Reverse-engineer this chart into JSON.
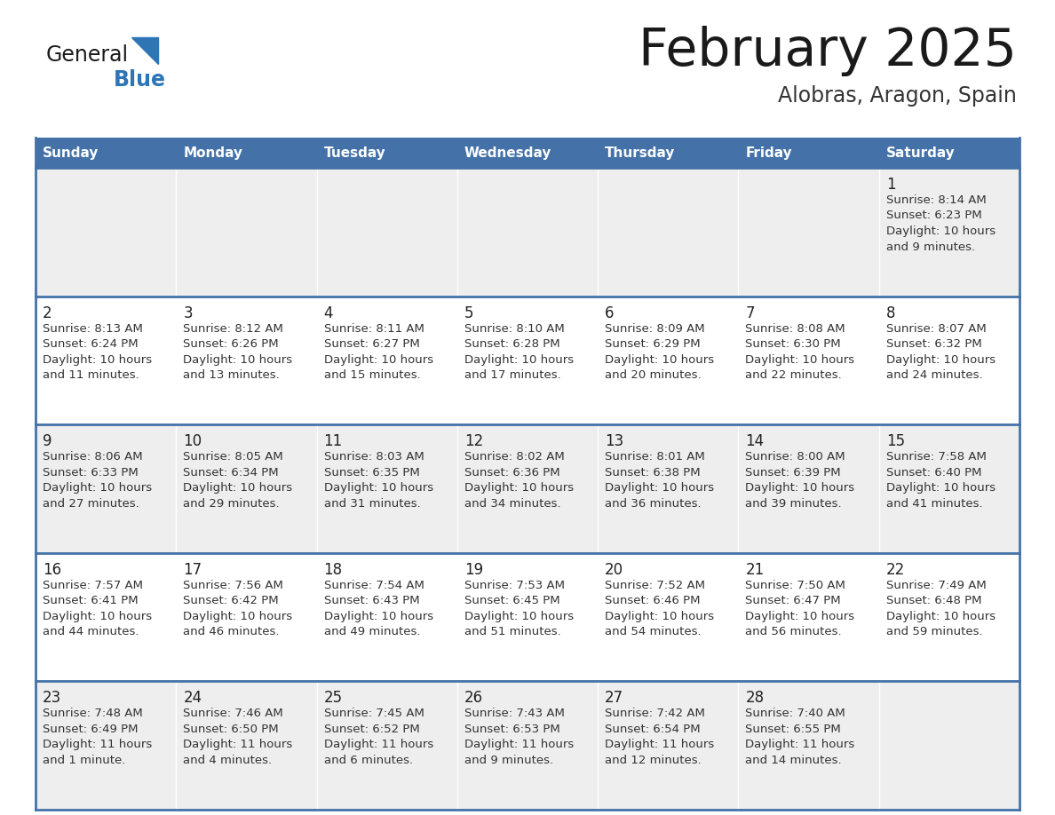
{
  "title": "February 2025",
  "subtitle": "Alobras, Aragon, Spain",
  "header_bg": "#4472a8",
  "header_text": "#ffffff",
  "odd_row_bg": "#eeeeee",
  "even_row_bg": "#ffffff",
  "border_color": "#4472a8",
  "day_headers": [
    "Sunday",
    "Monday",
    "Tuesday",
    "Wednesday",
    "Thursday",
    "Friday",
    "Saturday"
  ],
  "title_color": "#1a1a1a",
  "subtitle_color": "#333333",
  "cell_text_color": "#333333",
  "day_num_color": "#222222",
  "logo_general_color": "#1a1a1a",
  "logo_blue_color": "#2e75b6",
  "logo_triangle_color": "#2e75b6",
  "calendar_data": [
    [
      null,
      null,
      null,
      null,
      null,
      null,
      {
        "day": "1",
        "sunrise": "8:14 AM",
        "sunset": "6:23 PM",
        "daylight": "10 hours and 9 minutes."
      }
    ],
    [
      {
        "day": "2",
        "sunrise": "8:13 AM",
        "sunset": "6:24 PM",
        "daylight": "10 hours and 11 minutes."
      },
      {
        "day": "3",
        "sunrise": "8:12 AM",
        "sunset": "6:26 PM",
        "daylight": "10 hours and 13 minutes."
      },
      {
        "day": "4",
        "sunrise": "8:11 AM",
        "sunset": "6:27 PM",
        "daylight": "10 hours and 15 minutes."
      },
      {
        "day": "5",
        "sunrise": "8:10 AM",
        "sunset": "6:28 PM",
        "daylight": "10 hours and 17 minutes."
      },
      {
        "day": "6",
        "sunrise": "8:09 AM",
        "sunset": "6:29 PM",
        "daylight": "10 hours and 20 minutes."
      },
      {
        "day": "7",
        "sunrise": "8:08 AM",
        "sunset": "6:30 PM",
        "daylight": "10 hours and 22 minutes."
      },
      {
        "day": "8",
        "sunrise": "8:07 AM",
        "sunset": "6:32 PM",
        "daylight": "10 hours and 24 minutes."
      }
    ],
    [
      {
        "day": "9",
        "sunrise": "8:06 AM",
        "sunset": "6:33 PM",
        "daylight": "10 hours and 27 minutes."
      },
      {
        "day": "10",
        "sunrise": "8:05 AM",
        "sunset": "6:34 PM",
        "daylight": "10 hours and 29 minutes."
      },
      {
        "day": "11",
        "sunrise": "8:03 AM",
        "sunset": "6:35 PM",
        "daylight": "10 hours and 31 minutes."
      },
      {
        "day": "12",
        "sunrise": "8:02 AM",
        "sunset": "6:36 PM",
        "daylight": "10 hours and 34 minutes."
      },
      {
        "day": "13",
        "sunrise": "8:01 AM",
        "sunset": "6:38 PM",
        "daylight": "10 hours and 36 minutes."
      },
      {
        "day": "14",
        "sunrise": "8:00 AM",
        "sunset": "6:39 PM",
        "daylight": "10 hours and 39 minutes."
      },
      {
        "day": "15",
        "sunrise": "7:58 AM",
        "sunset": "6:40 PM",
        "daylight": "10 hours and 41 minutes."
      }
    ],
    [
      {
        "day": "16",
        "sunrise": "7:57 AM",
        "sunset": "6:41 PM",
        "daylight": "10 hours and 44 minutes."
      },
      {
        "day": "17",
        "sunrise": "7:56 AM",
        "sunset": "6:42 PM",
        "daylight": "10 hours and 46 minutes."
      },
      {
        "day": "18",
        "sunrise": "7:54 AM",
        "sunset": "6:43 PM",
        "daylight": "10 hours and 49 minutes."
      },
      {
        "day": "19",
        "sunrise": "7:53 AM",
        "sunset": "6:45 PM",
        "daylight": "10 hours and 51 minutes."
      },
      {
        "day": "20",
        "sunrise": "7:52 AM",
        "sunset": "6:46 PM",
        "daylight": "10 hours and 54 minutes."
      },
      {
        "day": "21",
        "sunrise": "7:50 AM",
        "sunset": "6:47 PM",
        "daylight": "10 hours and 56 minutes."
      },
      {
        "day": "22",
        "sunrise": "7:49 AM",
        "sunset": "6:48 PM",
        "daylight": "10 hours and 59 minutes."
      }
    ],
    [
      {
        "day": "23",
        "sunrise": "7:48 AM",
        "sunset": "6:49 PM",
        "daylight": "11 hours and 1 minute."
      },
      {
        "day": "24",
        "sunrise": "7:46 AM",
        "sunset": "6:50 PM",
        "daylight": "11 hours and 4 minutes."
      },
      {
        "day": "25",
        "sunrise": "7:45 AM",
        "sunset": "6:52 PM",
        "daylight": "11 hours and 6 minutes."
      },
      {
        "day": "26",
        "sunrise": "7:43 AM",
        "sunset": "6:53 PM",
        "daylight": "11 hours and 9 minutes."
      },
      {
        "day": "27",
        "sunrise": "7:42 AM",
        "sunset": "6:54 PM",
        "daylight": "11 hours and 12 minutes."
      },
      {
        "day": "28",
        "sunrise": "7:40 AM",
        "sunset": "6:55 PM",
        "daylight": "11 hours and 14 minutes."
      },
      null
    ]
  ]
}
